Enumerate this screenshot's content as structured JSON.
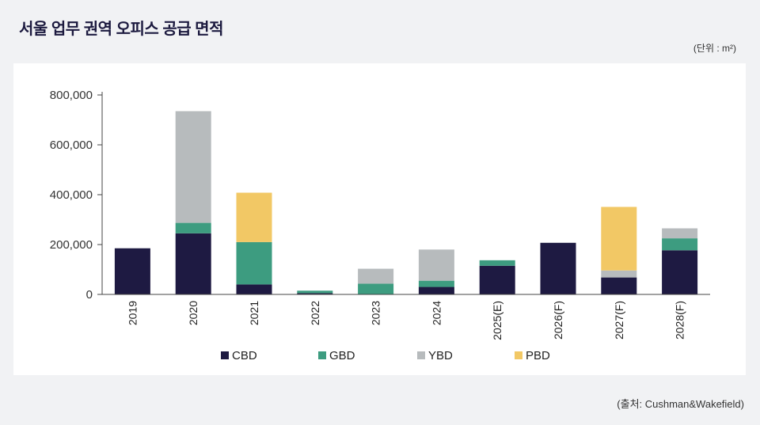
{
  "title": "서울 업무 권역 오피스 공급 면적",
  "unit": "(단위 : m²)",
  "source": "(출처: Cushman&Wakefield)",
  "chart_data": {
    "type": "bar",
    "stacked": true,
    "categories": [
      "2019",
      "2020",
      "2021",
      "2022",
      "2023",
      "2024",
      "2025(E)",
      "2026(F)",
      "2027(F)",
      "2028(F)"
    ],
    "series": [
      {
        "name": "CBD",
        "color": "#1e1a42",
        "values": [
          185000,
          245000,
          40000,
          5000,
          0,
          30000,
          115000,
          207000,
          68000,
          177000
        ]
      },
      {
        "name": "GBD",
        "color": "#3d9c80",
        "values": [
          0,
          42000,
          170000,
          10000,
          43000,
          25000,
          22000,
          0,
          0,
          48000
        ]
      },
      {
        "name": "YBD",
        "color": "#b7bbbd",
        "values": [
          0,
          448000,
          0,
          0,
          60000,
          125000,
          0,
          0,
          28000,
          40000
        ]
      },
      {
        "name": "PBD",
        "color": "#f2c865",
        "values": [
          0,
          0,
          198000,
          0,
          0,
          0,
          0,
          0,
          255000,
          0
        ]
      }
    ],
    "ylim": [
      0,
      800000
    ],
    "yticks": [
      0,
      200000,
      400000,
      600000,
      800000
    ],
    "ytick_labels": [
      "0",
      "200,000",
      "400,000",
      "600,000",
      "800,000"
    ],
    "grid": false,
    "legend_position": "bottom"
  }
}
